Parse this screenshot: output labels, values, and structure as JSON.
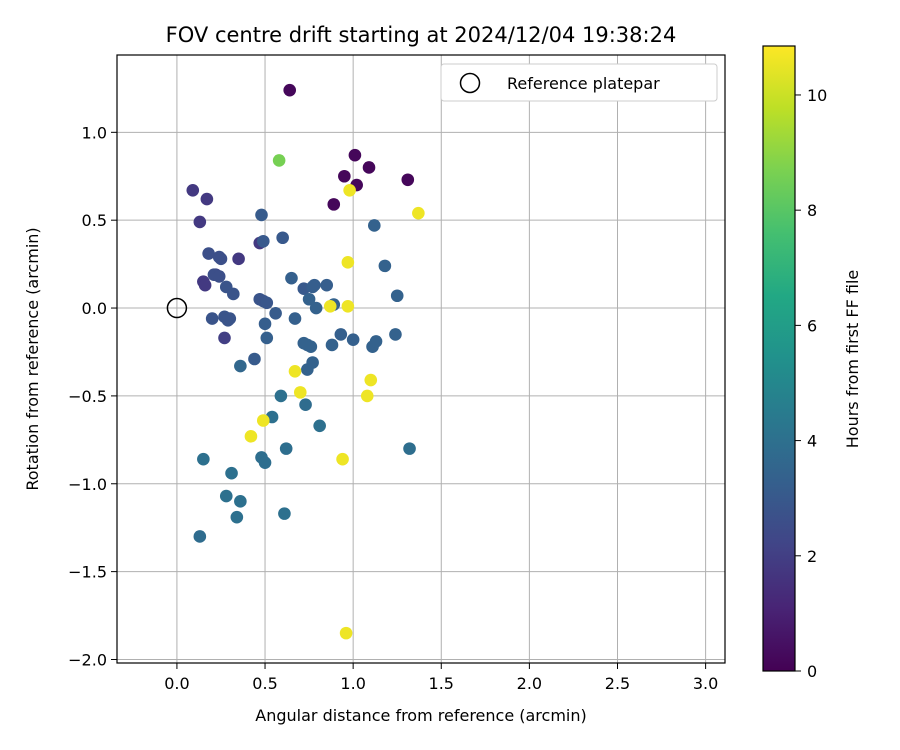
{
  "chart_data": {
    "type": "scatter",
    "title": "FOV centre drift starting at 2024/12/04 19:38:24",
    "xlabel": "Angular distance from reference (arcmin)",
    "ylabel": "Rotation from reference (arcmin)",
    "xlim": [
      -0.34,
      3.11
    ],
    "ylim": [
      -2.02,
      1.44
    ],
    "xticks": [
      0.0,
      0.5,
      1.0,
      1.5,
      2.0,
      2.5,
      3.0
    ],
    "xtick_labels": [
      "0.0",
      "0.5",
      "1.0",
      "1.5",
      "2.0",
      "2.5",
      "3.0"
    ],
    "yticks": [
      -2.0,
      -1.5,
      -1.0,
      -0.5,
      0.0,
      0.5,
      1.0
    ],
    "ytick_labels": [
      "−2.0",
      "−1.5",
      "−1.0",
      "−0.5",
      "0.0",
      "0.5",
      "1.0"
    ],
    "grid": true,
    "legend": {
      "position": "top-right",
      "entries": [
        "Reference platepar"
      ]
    },
    "reference_point": {
      "x": 0.0,
      "y": 0.0,
      "label": "Reference platepar"
    },
    "colorbar": {
      "label": "Hours from first FF file",
      "colormap": "viridis",
      "range": [
        0,
        10.85
      ],
      "ticks": [
        0,
        2,
        4,
        6,
        8,
        10
      ],
      "tick_labels": [
        "0",
        "2",
        "4",
        "6",
        "8",
        "10"
      ]
    },
    "points": [
      {
        "x": 0.64,
        "y": 1.24,
        "hours": 0.2
      },
      {
        "x": 1.01,
        "y": 0.87,
        "hours": 0.2
      },
      {
        "x": 1.09,
        "y": 0.8,
        "hours": 0.2
      },
      {
        "x": 0.95,
        "y": 0.75,
        "hours": 0.2
      },
      {
        "x": 1.31,
        "y": 0.73,
        "hours": 0.2
      },
      {
        "x": 1.02,
        "y": 0.7,
        "hours": 0.2
      },
      {
        "x": 0.89,
        "y": 0.59,
        "hours": 0.2
      },
      {
        "x": 0.09,
        "y": 0.67,
        "hours": 1.8
      },
      {
        "x": 0.17,
        "y": 0.62,
        "hours": 1.8
      },
      {
        "x": 0.13,
        "y": 0.49,
        "hours": 1.8
      },
      {
        "x": 0.47,
        "y": 0.37,
        "hours": 1.8
      },
      {
        "x": 0.35,
        "y": 0.28,
        "hours": 1.8
      },
      {
        "x": 0.15,
        "y": 0.15,
        "hours": 1.8
      },
      {
        "x": 0.16,
        "y": 0.13,
        "hours": 1.8
      },
      {
        "x": 0.22,
        "y": 0.19,
        "hours": 2.0
      },
      {
        "x": 0.27,
        "y": -0.17,
        "hours": 2.0
      },
      {
        "x": 0.58,
        "y": 0.84,
        "hours": 8.6
      },
      {
        "x": 0.48,
        "y": 0.53,
        "hours": 3.1
      },
      {
        "x": 0.49,
        "y": 0.38,
        "hours": 3.0
      },
      {
        "x": 0.6,
        "y": 0.4,
        "hours": 3.0
      },
      {
        "x": 0.18,
        "y": 0.31,
        "hours": 2.6
      },
      {
        "x": 0.24,
        "y": 0.29,
        "hours": 2.6
      },
      {
        "x": 0.25,
        "y": 0.28,
        "hours": 2.6
      },
      {
        "x": 0.21,
        "y": 0.19,
        "hours": 2.6
      },
      {
        "x": 0.24,
        "y": 0.18,
        "hours": 2.6
      },
      {
        "x": 0.28,
        "y": 0.12,
        "hours": 2.8
      },
      {
        "x": 0.32,
        "y": 0.08,
        "hours": 2.8
      },
      {
        "x": 0.47,
        "y": 0.05,
        "hours": 2.8
      },
      {
        "x": 0.49,
        "y": 0.04,
        "hours": 2.8
      },
      {
        "x": 0.51,
        "y": 0.03,
        "hours": 2.9
      },
      {
        "x": 0.2,
        "y": -0.06,
        "hours": 2.8
      },
      {
        "x": 0.27,
        "y": -0.05,
        "hours": 2.8
      },
      {
        "x": 0.3,
        "y": -0.06,
        "hours": 2.8
      },
      {
        "x": 0.29,
        "y": -0.07,
        "hours": 2.8
      },
      {
        "x": 0.56,
        "y": -0.03,
        "hours": 3.1
      },
      {
        "x": 0.5,
        "y": -0.09,
        "hours": 3.2
      },
      {
        "x": 0.51,
        "y": -0.17,
        "hours": 3.3
      },
      {
        "x": 0.44,
        "y": -0.29,
        "hours": 3.1
      },
      {
        "x": 0.36,
        "y": -0.33,
        "hours": 3.6
      },
      {
        "x": 0.65,
        "y": 0.17,
        "hours": 3.3
      },
      {
        "x": 0.72,
        "y": 0.11,
        "hours": 3.0
      },
      {
        "x": 0.77,
        "y": 0.12,
        "hours": 3.2
      },
      {
        "x": 0.78,
        "y": 0.13,
        "hours": 3.2
      },
      {
        "x": 0.85,
        "y": 0.13,
        "hours": 3.2
      },
      {
        "x": 0.75,
        "y": 0.05,
        "hours": 3.4
      },
      {
        "x": 0.79,
        "y": 0.0,
        "hours": 3.4
      },
      {
        "x": 0.89,
        "y": 0.02,
        "hours": 3.4
      },
      {
        "x": 0.67,
        "y": -0.06,
        "hours": 3.3
      },
      {
        "x": 0.72,
        "y": -0.2,
        "hours": 3.4
      },
      {
        "x": 0.74,
        "y": -0.21,
        "hours": 3.4
      },
      {
        "x": 0.76,
        "y": -0.22,
        "hours": 3.4
      },
      {
        "x": 0.88,
        "y": -0.21,
        "hours": 3.4
      },
      {
        "x": 0.93,
        "y": -0.15,
        "hours": 3.3
      },
      {
        "x": 1.0,
        "y": -0.18,
        "hours": 3.3
      },
      {
        "x": 0.74,
        "y": -0.35,
        "hours": 3.4
      },
      {
        "x": 0.77,
        "y": -0.31,
        "hours": 3.4
      },
      {
        "x": 1.12,
        "y": 0.47,
        "hours": 3.4
      },
      {
        "x": 1.18,
        "y": 0.24,
        "hours": 3.4
      },
      {
        "x": 1.25,
        "y": 0.07,
        "hours": 3.4
      },
      {
        "x": 1.11,
        "y": -0.22,
        "hours": 3.4
      },
      {
        "x": 1.13,
        "y": -0.19,
        "hours": 3.4
      },
      {
        "x": 1.24,
        "y": -0.15,
        "hours": 3.4
      },
      {
        "x": 0.54,
        "y": -0.62,
        "hours": 4.0
      },
      {
        "x": 0.59,
        "y": -0.5,
        "hours": 4.0
      },
      {
        "x": 0.73,
        "y": -0.55,
        "hours": 3.8
      },
      {
        "x": 0.81,
        "y": -0.67,
        "hours": 4.0
      },
      {
        "x": 0.48,
        "y": -0.85,
        "hours": 3.9
      },
      {
        "x": 0.5,
        "y": -0.88,
        "hours": 3.9
      },
      {
        "x": 0.62,
        "y": -0.8,
        "hours": 3.9
      },
      {
        "x": 0.15,
        "y": -0.86,
        "hours": 4.0
      },
      {
        "x": 0.31,
        "y": -0.94,
        "hours": 4.0
      },
      {
        "x": 0.28,
        "y": -1.07,
        "hours": 4.0
      },
      {
        "x": 0.36,
        "y": -1.1,
        "hours": 4.0
      },
      {
        "x": 0.34,
        "y": -1.19,
        "hours": 4.0
      },
      {
        "x": 0.61,
        "y": -1.17,
        "hours": 4.0
      },
      {
        "x": 0.13,
        "y": -1.3,
        "hours": 3.8
      },
      {
        "x": 1.32,
        "y": -0.8,
        "hours": 3.9
      },
      {
        "x": 0.98,
        "y": 0.67,
        "hours": 10.6
      },
      {
        "x": 1.37,
        "y": 0.54,
        "hours": 10.6
      },
      {
        "x": 0.97,
        "y": 0.26,
        "hours": 10.6
      },
      {
        "x": 0.87,
        "y": 0.01,
        "hours": 10.6
      },
      {
        "x": 0.97,
        "y": 0.01,
        "hours": 10.6
      },
      {
        "x": 0.67,
        "y": -0.36,
        "hours": 10.6
      },
      {
        "x": 0.7,
        "y": -0.48,
        "hours": 10.6
      },
      {
        "x": 1.1,
        "y": -0.41,
        "hours": 10.6
      },
      {
        "x": 1.08,
        "y": -0.5,
        "hours": 10.6
      },
      {
        "x": 0.49,
        "y": -0.64,
        "hours": 10.6
      },
      {
        "x": 0.42,
        "y": -0.73,
        "hours": 10.6
      },
      {
        "x": 0.94,
        "y": -0.86,
        "hours": 10.6
      },
      {
        "x": 0.96,
        "y": -1.85,
        "hours": 10.6
      }
    ]
  }
}
